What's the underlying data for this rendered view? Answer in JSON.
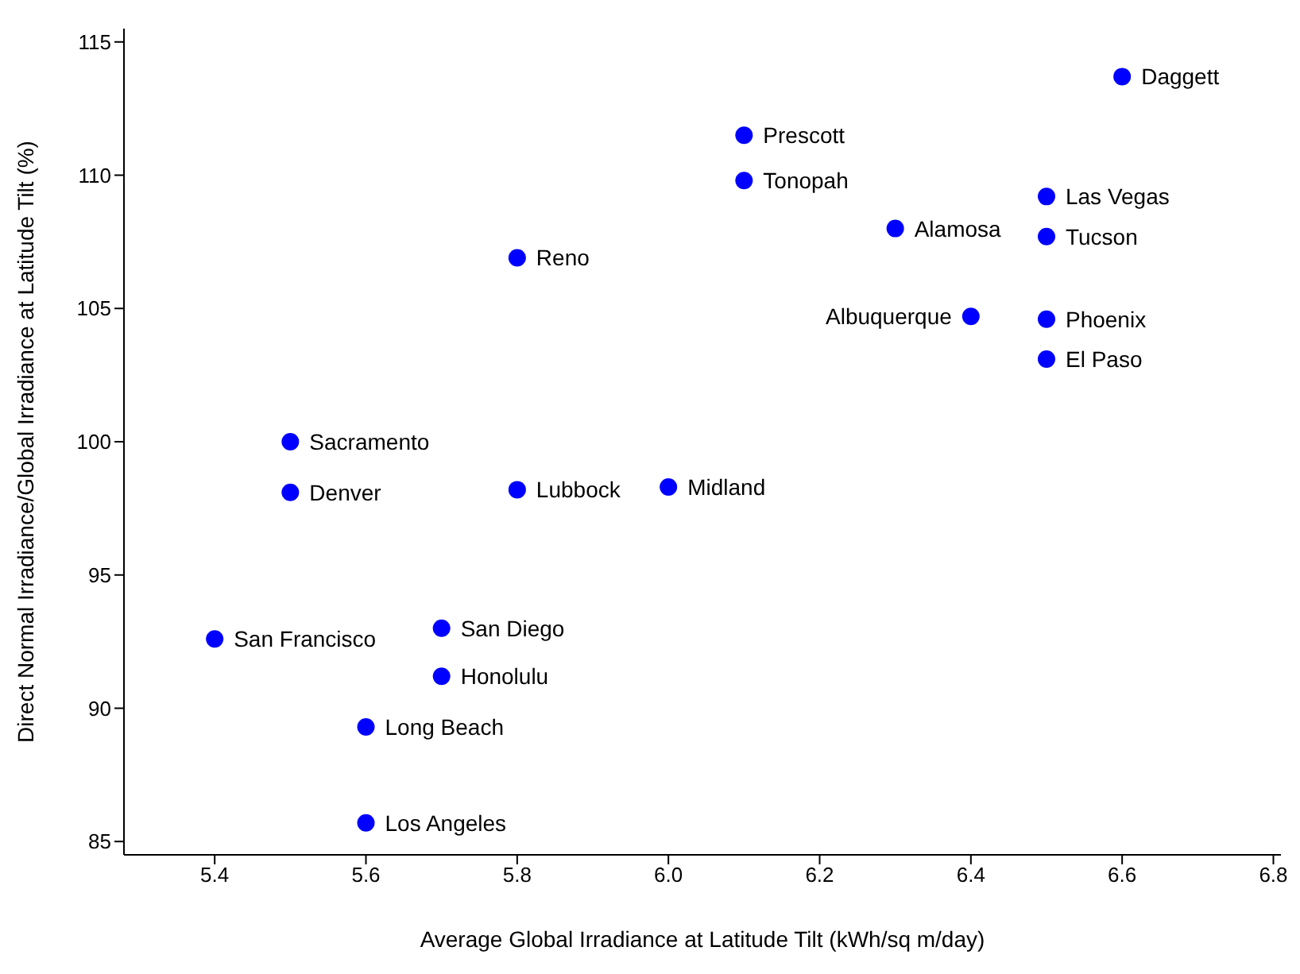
{
  "chart_data": {
    "type": "scatter",
    "xlabel": "Average Global Irradiance at Latitude Tilt (kWh/sq m/day)",
    "ylabel": "Direct Normal Irradiance/Global Irradiance at Latitude Tilt (%)",
    "x": [
      6.6,
      6.1,
      6.1,
      6.5,
      6.3,
      6.5,
      5.8,
      6.4,
      6.5,
      6.5,
      5.5,
      5.5,
      5.8,
      6.0,
      5.4,
      5.7,
      5.7,
      5.6,
      5.6
    ],
    "series": [
      {
        "color": "#0000ff",
        "values": [
          113.7,
          111.5,
          109.8,
          109.2,
          108.0,
          107.7,
          106.9,
          104.7,
          104.6,
          103.1,
          100.0,
          98.1,
          98.2,
          98.3,
          92.6,
          93.0,
          91.2,
          89.3,
          85.7
        ]
      }
    ],
    "annotations": [
      {
        "text": "Daggett",
        "x": 6.6,
        "y": 113.7
      },
      {
        "text": "Prescott",
        "x": 6.1,
        "y": 111.5
      },
      {
        "text": "Tonopah",
        "x": 6.1,
        "y": 109.8
      },
      {
        "text": "Las Vegas",
        "x": 6.5,
        "y": 109.2
      },
      {
        "text": "Alamosa",
        "x": 6.3,
        "y": 108.0
      },
      {
        "text": "Tucson",
        "x": 6.5,
        "y": 107.7
      },
      {
        "text": "Reno",
        "x": 5.8,
        "y": 106.9
      },
      {
        "text": "Albuquerque",
        "x": 6.4,
        "y": 104.7
      },
      {
        "text": "Phoenix",
        "x": 6.5,
        "y": 104.6
      },
      {
        "text": "El Paso",
        "x": 6.5,
        "y": 103.1
      },
      {
        "text": "Sacramento",
        "x": 5.5,
        "y": 100.0
      },
      {
        "text": "Denver",
        "x": 5.5,
        "y": 98.1
      },
      {
        "text": "Lubbock",
        "x": 5.8,
        "y": 98.2
      },
      {
        "text": "Midland",
        "x": 6.0,
        "y": 98.3
      },
      {
        "text": "San Francisco",
        "x": 5.4,
        "y": 92.6
      },
      {
        "text": "San Diego",
        "x": 5.7,
        "y": 93.0
      },
      {
        "text": "Honolulu",
        "x": 5.7,
        "y": 91.2
      },
      {
        "text": "Long Beach",
        "x": 5.6,
        "y": 89.3
      },
      {
        "text": "Los Angeles",
        "x": 5.6,
        "y": 85.7
      }
    ],
    "xlim": [
      5.28,
      6.81
    ],
    "xticks": [
      5.4,
      5.6,
      5.8,
      {
        "value": 6,
        "label": "6.0"
      },
      6.2,
      6.4,
      6.6,
      6.8
    ],
    "ylim": [
      84.5,
      115.5
    ],
    "yticks": [
      85,
      90,
      95,
      100,
      105,
      110,
      115
    ],
    "grid": false,
    "legend": false,
    "marker": "circle"
  }
}
